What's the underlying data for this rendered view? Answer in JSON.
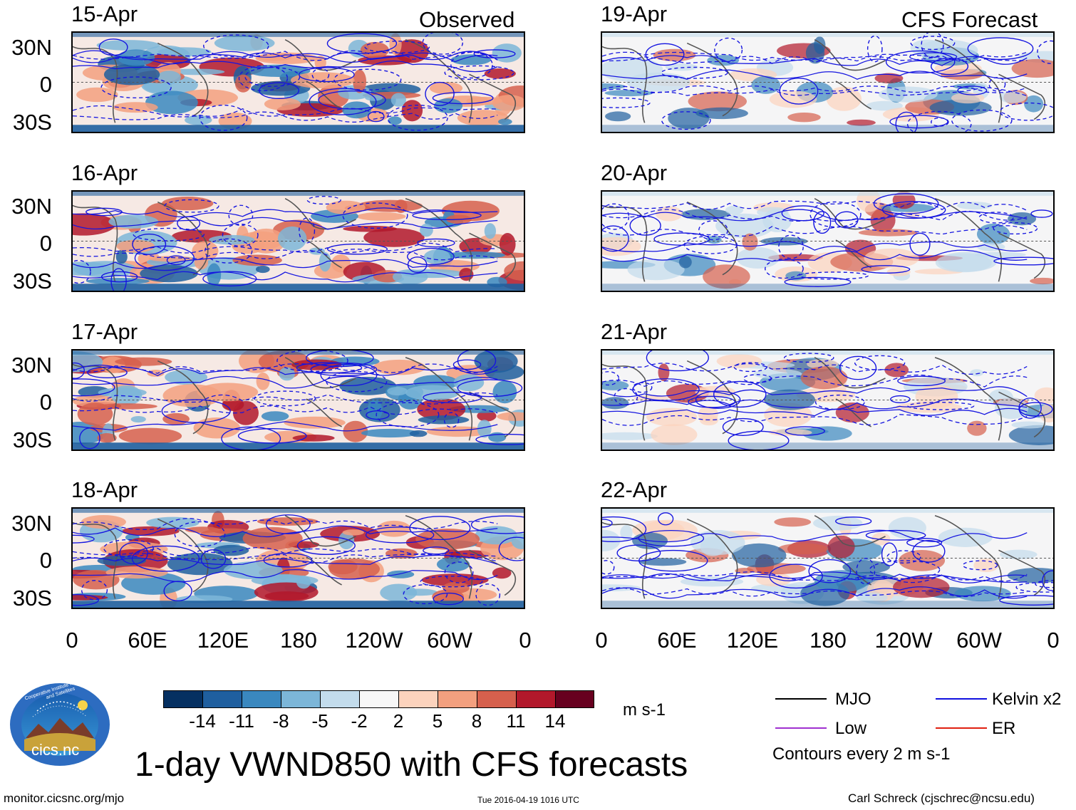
{
  "column_labels": {
    "observed": "Observed",
    "forecast": "CFS Forecast"
  },
  "observed_dates": [
    "15-Apr",
    "16-Apr",
    "17-Apr",
    "18-Apr"
  ],
  "forecast_dates": [
    "19-Apr",
    "20-Apr",
    "21-Apr",
    "22-Apr"
  ],
  "lat_ticks": [
    "30N",
    "0",
    "30S"
  ],
  "lon_ticks": [
    "0",
    "60E",
    "120E",
    "180",
    "120W",
    "60W",
    "0"
  ],
  "colorbar": {
    "colors": [
      "#053061",
      "#1f5f9f",
      "#3a88bf",
      "#7cb6d8",
      "#c3dcec",
      "#f7f7f7",
      "#fcd3bd",
      "#f3a07f",
      "#d6604d",
      "#b2182b",
      "#67001f"
    ],
    "labels": [
      "-14",
      "-11",
      "-8",
      "-5",
      "-2",
      "2",
      "5",
      "8",
      "11",
      "14"
    ],
    "units": "m s-1"
  },
  "legend": {
    "mjo": "MJO",
    "low": "Low",
    "kelvin": "Kelvin x2",
    "er": "ER",
    "contours": "Contours every 2 m s-1",
    "colors": {
      "mjo": "#000000",
      "low": "#a030d0",
      "kelvin": "#1010e0",
      "er": "#e02010"
    }
  },
  "logo": {
    "text": "cics.nc",
    "ring_text": "Cooperative Institute for Climate and Satellites"
  },
  "title": "1-day VWND850 with CFS forecasts",
  "footer": {
    "url": "monitor.cicsnc.org/mjo",
    "timestamp": "Tue 2016-04-19 1016 UTC",
    "author": "Carl Schreck (cjschrec@ncsu.edu)"
  }
}
